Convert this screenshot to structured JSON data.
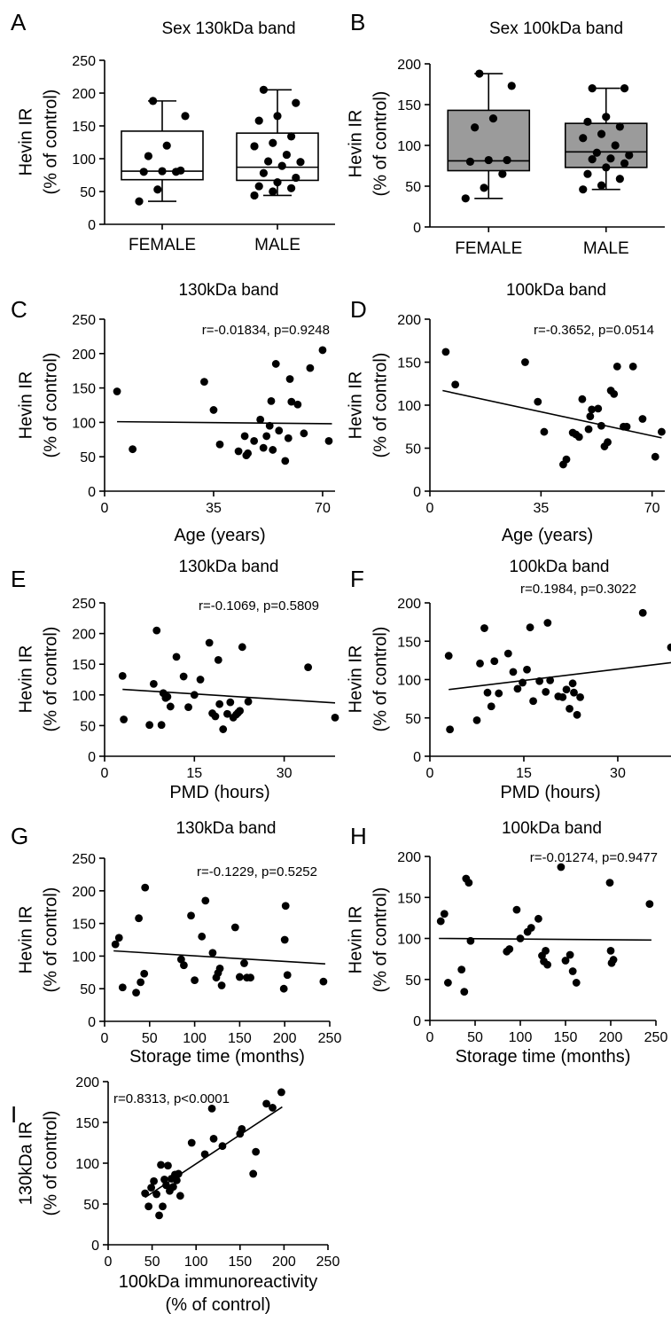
{
  "chart_data": [
    {
      "id": "A",
      "type": "box",
      "letter": "A",
      "title": "Sex 130kDa band",
      "ylabel": [
        "Hevin IR",
        "(% of control)"
      ],
      "xlabel": [],
      "ylim": [
        0,
        250
      ],
      "yticks": [
        0,
        50,
        100,
        150,
        200,
        250
      ],
      "categories": [
        "FEMALE",
        "MALE"
      ],
      "box_fill": "#ffffff",
      "boxes": [
        {
          "min": 35,
          "q1": 68,
          "median": 81,
          "q3": 142,
          "max": 188
        },
        {
          "min": 44,
          "q1": 67,
          "median": 87,
          "q3": 139,
          "max": 205
        }
      ],
      "points": [
        [
          35,
          53,
          80,
          80,
          81,
          82,
          104,
          120,
          165,
          188
        ],
        [
          44,
          50,
          55,
          58,
          64,
          71,
          78,
          89,
          95,
          96,
          106,
          119,
          124,
          134,
          158,
          165,
          185,
          205
        ]
      ]
    },
    {
      "id": "B",
      "type": "box",
      "letter": "B",
      "title": "Sex 100kDa band",
      "ylabel": [
        "Hevin IR",
        "(% of control)"
      ],
      "xlabel": [],
      "ylim": [
        0,
        200
      ],
      "yticks": [
        0,
        50,
        100,
        150,
        200
      ],
      "categories": [
        "FEMALE",
        "MALE"
      ],
      "box_fill": "#9b9b9b",
      "boxes": [
        {
          "min": 35,
          "q1": 69,
          "median": 81,
          "q3": 143,
          "max": 188
        },
        {
          "min": 46,
          "q1": 73,
          "median": 92,
          "q3": 127,
          "max": 170
        }
      ],
      "points": [
        [
          35,
          48,
          65,
          80,
          82,
          82,
          122,
          133,
          173,
          188
        ],
        [
          46,
          51,
          59,
          65,
          73,
          78,
          83,
          84,
          88,
          91,
          100,
          109,
          114,
          123,
          129,
          135,
          170,
          170
        ]
      ]
    },
    {
      "id": "C",
      "type": "scatter",
      "letter": "C",
      "title": "130kDa band",
      "ylabel": [
        "Hevin IR",
        "(% of control)"
      ],
      "xlabel": [
        "Age (years)"
      ],
      "xlim": [
        0,
        74
      ],
      "xticks": [
        0,
        35,
        70
      ],
      "ylim": [
        0,
        250
      ],
      "yticks": [
        0,
        50,
        100,
        150,
        200,
        250
      ],
      "annotation": "r=-0.01834, p=0.9248",
      "fit": [
        [
          4,
          101
        ],
        [
          73,
          98
        ]
      ],
      "x": [
        4,
        9,
        32,
        35,
        37,
        43,
        45,
        45.5,
        46,
        48,
        50,
        51,
        52,
        53,
        53.5,
        54,
        55,
        56,
        58,
        59,
        59.5,
        60,
        62,
        64,
        66,
        70,
        72
      ],
      "y": [
        145,
        61,
        159,
        118,
        68,
        58,
        80,
        52,
        55,
        73,
        104,
        63,
        80,
        95,
        131,
        60,
        185,
        88,
        44,
        77,
        163,
        130,
        126,
        84,
        179,
        205,
        73
      ]
    },
    {
      "id": "D",
      "type": "scatter",
      "letter": "D",
      "title": "100kDa band",
      "ylabel": [
        "Hevin IR",
        "(% of control)"
      ],
      "xlabel": [
        "Age (years)"
      ],
      "xlim": [
        0,
        74
      ],
      "xticks": [
        0,
        35,
        70
      ],
      "ylim": [
        0,
        200
      ],
      "yticks": [
        0,
        50,
        100,
        150,
        200
      ],
      "annotation": "r=-0.3652, p=0.0514",
      "fit": [
        [
          4,
          117
        ],
        [
          73,
          62
        ]
      ],
      "x": [
        5,
        8,
        30,
        34,
        36,
        42,
        43,
        45,
        46,
        47,
        48,
        50,
        50.5,
        51,
        53,
        54,
        55,
        56,
        57,
        58,
        59,
        61,
        62,
        64,
        67,
        71,
        73
      ],
      "y": [
        162,
        124,
        150,
        104,
        69,
        31,
        37,
        68,
        66,
        63,
        107,
        72,
        87,
        95,
        96,
        76,
        52,
        57,
        117,
        113,
        145,
        75,
        75,
        145,
        84,
        40,
        69
      ]
    },
    {
      "id": "E",
      "type": "scatter",
      "letter": "E",
      "title": "130kDa band",
      "ylabel": [
        "Hevin IR",
        "(% of control)"
      ],
      "xlabel": [
        "PMD (hours)"
      ],
      "xlim": [
        0,
        38.5
      ],
      "xticks": [
        0,
        15,
        30
      ],
      "ylim": [
        0,
        250
      ],
      "yticks": [
        0,
        50,
        100,
        150,
        200,
        250
      ],
      "annotation": "r=-0.1069, p=0.5809",
      "fit": [
        [
          3,
          109
        ],
        [
          38.5,
          87
        ]
      ],
      "x": [
        3,
        3.2,
        7.5,
        8.2,
        8.7,
        9.5,
        9.8,
        10.2,
        10.5,
        11,
        12,
        13.2,
        14,
        15,
        16,
        17.5,
        18,
        18.5,
        19,
        19.2,
        19.8,
        20.5,
        21,
        21.5,
        22,
        22.3,
        22.6,
        23,
        24,
        34,
        38.5
      ],
      "y": [
        131,
        60,
        51,
        118,
        205,
        51,
        103,
        95,
        97,
        81,
        162,
        130,
        80,
        100,
        125,
        185,
        70,
        65,
        157,
        85,
        44,
        69,
        88,
        63,
        68,
        71,
        74,
        178,
        89,
        145,
        63
      ]
    },
    {
      "id": "F",
      "type": "scatter",
      "letter": "F",
      "title": "100kDa band",
      "ylabel": [
        "Hevin IR",
        "(% of control)"
      ],
      "xlabel": [
        "PMD (hours)"
      ],
      "xlim": [
        0,
        38.5
      ],
      "xticks": [
        0,
        15,
        30
      ],
      "ylim": [
        0,
        200
      ],
      "yticks": [
        0,
        50,
        100,
        150,
        200
      ],
      "annotation": "r=0.1984, p=0.3022",
      "fit": [
        [
          3,
          87
        ],
        [
          38.5,
          122
        ]
      ],
      "x": [
        3,
        3.2,
        7.5,
        8,
        8.7,
        9.2,
        9.8,
        10.3,
        11,
        12.5,
        13.3,
        14,
        14.8,
        15.5,
        16,
        16.5,
        17.5,
        18.5,
        18.8,
        19.2,
        20.5,
        21.2,
        21.8,
        22.3,
        22.8,
        23,
        23.5,
        24,
        34,
        38.5
      ],
      "y": [
        131,
        35,
        47,
        121,
        167,
        83,
        65,
        124,
        82,
        134,
        110,
        88,
        96,
        113,
        168,
        72,
        98,
        84,
        174,
        99,
        78,
        77,
        87,
        62,
        95,
        83,
        54,
        77,
        187,
        142
      ]
    },
    {
      "id": "G",
      "type": "scatter",
      "letter": "G",
      "title": "130kDa band",
      "ylabel": [
        "Hevin IR",
        "(% of control)"
      ],
      "xlabel": [
        "Storage time (months)"
      ],
      "xlim": [
        0,
        250
      ],
      "xticks": [
        0,
        50,
        100,
        150,
        200,
        250
      ],
      "ylim": [
        0,
        250
      ],
      "yticks": [
        0,
        50,
        100,
        150,
        200,
        250
      ],
      "annotation": "r=-0.1229, p=0.5252",
      "fit": [
        [
          10,
          108
        ],
        [
          245,
          88
        ]
      ],
      "x": [
        12,
        16,
        20,
        35,
        38,
        40,
        44,
        45,
        85,
        88,
        96,
        100,
        108,
        112,
        120,
        124,
        126,
        128,
        130,
        145,
        150,
        155,
        158,
        162,
        199,
        200,
        201,
        203,
        243
      ],
      "y": [
        118,
        128,
        52,
        44,
        158,
        60,
        73,
        205,
        95,
        86,
        162,
        63,
        130,
        185,
        105,
        67,
        74,
        81,
        55,
        144,
        68,
        89,
        67,
        67,
        50,
        125,
        177,
        71,
        61
      ]
    },
    {
      "id": "H",
      "type": "scatter",
      "letter": "H",
      "title": "100kDa band",
      "ylabel": [
        "Hevin IR",
        "(% of control)"
      ],
      "xlabel": [
        "Storage time (months)"
      ],
      "xlim": [
        0,
        250
      ],
      "xticks": [
        0,
        50,
        100,
        150,
        200,
        250
      ],
      "ylim": [
        0,
        200
      ],
      "yticks": [
        0,
        50,
        100,
        150,
        200
      ],
      "annotation": "r=-0.01274, p=0.9477",
      "fit": [
        [
          10,
          100
        ],
        [
          245,
          98
        ]
      ],
      "x": [
        12,
        16,
        20,
        35,
        38,
        40,
        43,
        45,
        85,
        88,
        96,
        100,
        108,
        112,
        120,
        124,
        126,
        128,
        130,
        145,
        150,
        155,
        158,
        162,
        199,
        200,
        201,
        203,
        243
      ],
      "y": [
        121,
        130,
        46,
        62,
        35,
        173,
        168,
        97,
        84,
        87,
        135,
        100,
        108,
        113,
        124,
        79,
        72,
        85,
        68,
        187,
        73,
        80,
        60,
        46,
        168,
        85,
        70,
        74,
        142
      ]
    },
    {
      "id": "I",
      "type": "scatter",
      "letter": "I",
      "title": "",
      "ylabel": [
        "130kDa IR",
        "(% of control)"
      ],
      "xlabel": [
        "100kDa immunoreactivity",
        "(% of control)"
      ],
      "xlim": [
        0,
        250
      ],
      "xticks": [
        0,
        50,
        100,
        150,
        200,
        250
      ],
      "ylim": [
        0,
        200
      ],
      "yticks": [
        0,
        50,
        100,
        150,
        200
      ],
      "annotation": "r=0.8313, p<0.0001",
      "fit": [
        [
          42,
          58
        ],
        [
          198,
          169
        ]
      ],
      "x": [
        42,
        46,
        49,
        52,
        55,
        58,
        60,
        62,
        64,
        66,
        68,
        70,
        72,
        74,
        76,
        78,
        80,
        82,
        95,
        110,
        118,
        120,
        130,
        150,
        152,
        165,
        168,
        180,
        187,
        197
      ],
      "y": [
        63,
        47,
        70,
        78,
        62,
        36,
        98,
        47,
        80,
        73,
        97,
        66,
        81,
        71,
        86,
        79,
        87,
        60,
        125,
        111,
        167,
        130,
        121,
        136,
        142,
        87,
        114,
        173,
        168,
        187
      ]
    }
  ]
}
